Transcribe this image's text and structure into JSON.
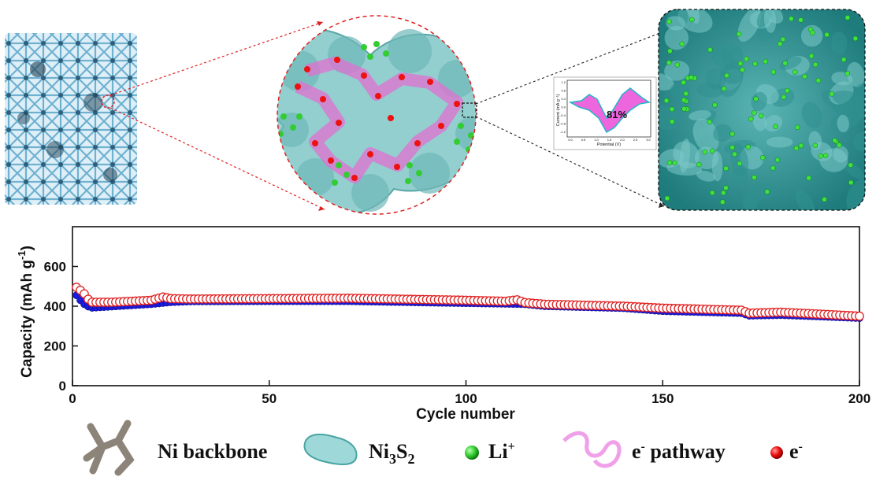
{
  "inset": {
    "retention_label": "81%",
    "y_axis_label": "Current (mA g⁻¹)",
    "x_axis_label": "Potential (V)",
    "y_ticks": [
      "1.2",
      "0.8",
      "0.4",
      "0.0",
      "-0.4",
      "-0.8",
      "-1.2"
    ],
    "x_ticks": [
      "0.0",
      "0.5",
      "1.0",
      "1.5",
      "2.0",
      "2.5",
      "3.0"
    ]
  },
  "chart_data": {
    "type": "scatter",
    "xlabel": "Cycle number",
    "ylabel_main": "Capacity (mAh g",
    "ylabel_sup": "-1",
    "ylabel_close": ")",
    "xlim": [
      0,
      200
    ],
    "ylim": [
      0,
      800
    ],
    "x_ticks": [
      0,
      50,
      100,
      150,
      200
    ],
    "y_ticks": [
      0,
      200,
      400,
      600
    ],
    "series": [
      {
        "marker": "filled-circle",
        "color": "#1a1adc",
        "anchors": [
          [
            1,
            455
          ],
          [
            2,
            430
          ],
          [
            3,
            410
          ],
          [
            4,
            398
          ],
          [
            5,
            392
          ],
          [
            10,
            398
          ],
          [
            20,
            410
          ],
          [
            25,
            420
          ],
          [
            30,
            424
          ],
          [
            50,
            425
          ],
          [
            70,
            425
          ],
          [
            100,
            415
          ],
          [
            110,
            412
          ],
          [
            115,
            410
          ],
          [
            120,
            400
          ],
          [
            140,
            390
          ],
          [
            150,
            375
          ],
          [
            170,
            365
          ],
          [
            172,
            352
          ],
          [
            180,
            355
          ],
          [
            190,
            348
          ],
          [
            200,
            340
          ]
        ]
      },
      {
        "marker": "hollow-circle",
        "color": "#e02020",
        "anchors": [
          [
            1,
            495
          ],
          [
            2,
            480
          ],
          [
            3,
            462
          ],
          [
            4,
            435
          ],
          [
            5,
            420
          ],
          [
            10,
            420
          ],
          [
            20,
            430
          ],
          [
            23,
            446
          ],
          [
            25,
            438
          ],
          [
            30,
            436
          ],
          [
            50,
            438
          ],
          [
            70,
            440
          ],
          [
            100,
            430
          ],
          [
            110,
            425
          ],
          [
            113,
            432
          ],
          [
            115,
            418
          ],
          [
            120,
            410
          ],
          [
            140,
            400
          ],
          [
            150,
            390
          ],
          [
            170,
            380
          ],
          [
            172,
            365
          ],
          [
            180,
            370
          ],
          [
            190,
            360
          ],
          [
            200,
            350
          ]
        ]
      }
    ]
  },
  "legend": {
    "ni_backbone": "Ni backbone",
    "ni3s2_main": "Ni",
    "ni3s2_sub1": "3",
    "ni3s2_mid": "S",
    "ni3s2_sub2": "2",
    "li_main": "Li",
    "li_sup": "+",
    "epath_e": "e",
    "epath_sup": "-",
    "epath_rest": " pathway",
    "e_main": "e",
    "e_sup": "-"
  },
  "colors": {
    "ni_backbone": "#8c8478",
    "ni3s2_dark": "#3a9c9c",
    "ni3s2_light": "#9ed8d8",
    "lattice": "#7ab8d4",
    "li_green": "#33cc33",
    "pathway_pink": "#e070d0",
    "electron_red": "#ee1111"
  }
}
